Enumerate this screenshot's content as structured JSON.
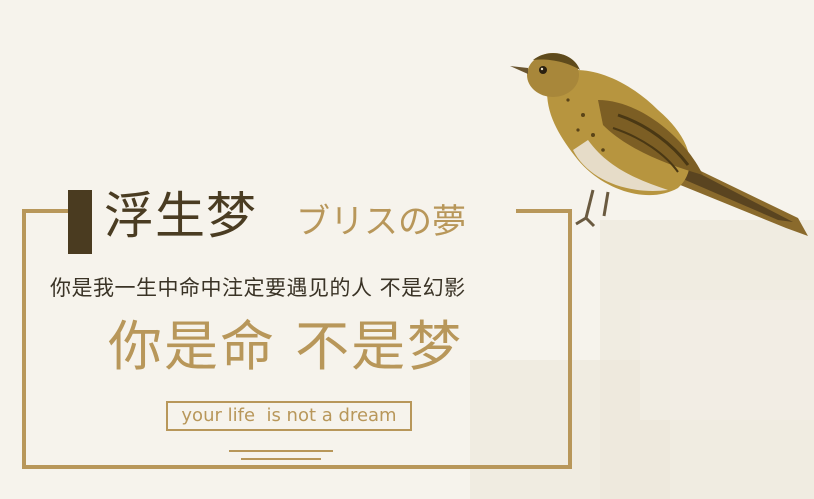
{
  "poster": {
    "title_main": "浮生梦",
    "title_jp": "ブリスの夢",
    "subline": "你是我一生中命中注定要遇见的人 不是幻影",
    "headline": "你是命 不是梦",
    "tagline": "your life  is not a dream"
  },
  "illustration": {
    "subject": "bird-icon"
  },
  "colors": {
    "background": "#f6f3ec",
    "gold": "#b8975a",
    "dark_brown": "#4a3c22",
    "text_dark": "#3a3326"
  }
}
